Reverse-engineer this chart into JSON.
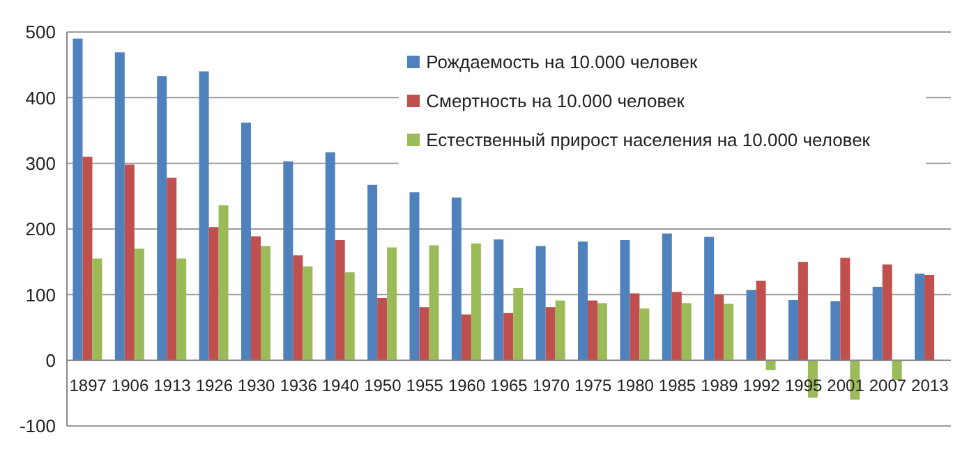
{
  "chart_data": {
    "type": "bar",
    "categories": [
      "1897",
      "1906",
      "1913",
      "1926",
      "1930",
      "1936",
      "1940",
      "1950",
      "1955",
      "1960",
      "1965",
      "1970",
      "1975",
      "1980",
      "1985",
      "1989",
      "1992",
      "1995",
      "2001",
      "2007",
      "2013"
    ],
    "series": [
      {
        "name": "Рождаемость на 10.000 человек",
        "color": "#4f81bd",
        "values": [
          490,
          469,
          433,
          440,
          362,
          303,
          317,
          267,
          256,
          248,
          184,
          174,
          181,
          183,
          193,
          188,
          107,
          92,
          90,
          112,
          132
        ]
      },
      {
        "name": "Смертность на 10.000 человек",
        "color": "#c0504d",
        "values": [
          310,
          298,
          278,
          203,
          189,
          160,
          183,
          95,
          81,
          70,
          72,
          81,
          91,
          102,
          104,
          100,
          121,
          150,
          156,
          146,
          130
        ]
      },
      {
        "name": "Естественный прирост населения на 10.000 человек",
        "color": "#9bbb59",
        "values": [
          155,
          170,
          155,
          236,
          174,
          143,
          134,
          172,
          175,
          178,
          110,
          91,
          87,
          79,
          87,
          86,
          -15,
          -57,
          -60,
          -30,
          null
        ]
      }
    ],
    "ylim": [
      -100,
      500
    ],
    "yticks": [
      -100,
      0,
      100,
      200,
      300,
      400,
      500
    ],
    "grid": "y",
    "legend": "top right"
  }
}
